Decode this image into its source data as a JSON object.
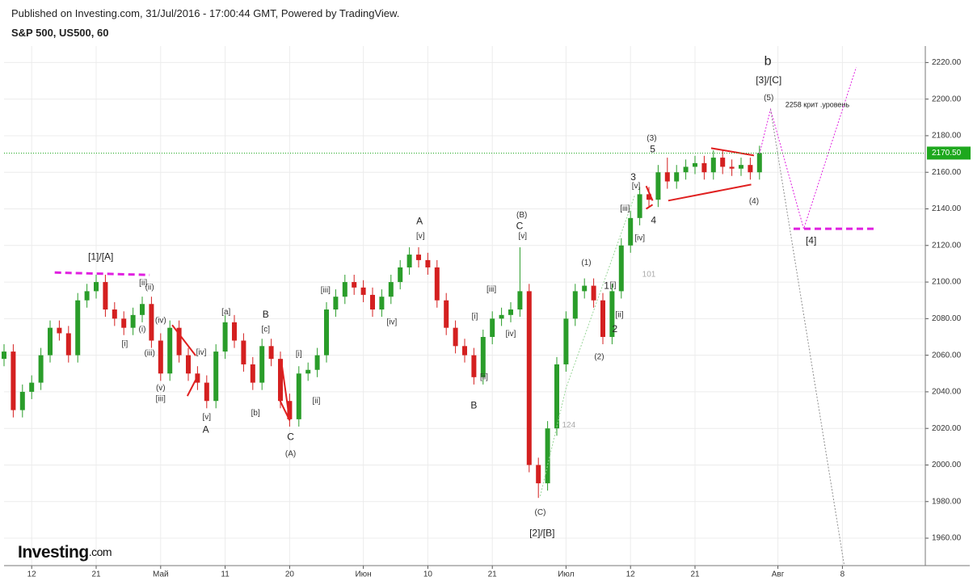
{
  "header": {
    "published": "Published on Investing.com, 31/Jul/2016 - 17:00:44 GMT, Powered by TradingView.",
    "symbol": "S&P 500, US500, 60"
  },
  "logo": {
    "name": "Investing",
    "suffix": ".com"
  },
  "chart_data": {
    "type": "candlestick",
    "grid": true,
    "up_color": "#2a9d2a",
    "down_color": "#d42020",
    "x": [
      -3,
      -2,
      -1,
      0,
      1,
      2,
      3,
      4,
      5,
      6,
      7,
      8,
      9,
      10,
      11,
      12,
      13,
      14,
      15,
      16,
      17,
      18,
      19,
      20,
      21,
      22,
      23,
      24,
      25,
      26,
      27,
      28,
      29,
      30,
      31,
      32,
      33,
      34,
      35,
      36,
      37,
      38,
      39,
      40,
      41,
      42,
      43,
      44,
      45,
      46,
      47,
      48,
      49,
      50,
      51,
      52,
      53,
      54,
      55,
      56,
      57,
      58,
      59,
      60,
      61,
      62,
      63,
      64,
      65,
      66,
      67,
      68,
      69,
      70,
      71,
      72,
      73,
      74,
      75,
      76,
      77,
      78,
      79
    ],
    "open": [
      2058,
      2062,
      2030,
      2040,
      2045,
      2060,
      2075,
      2072,
      2060,
      2090,
      2095,
      2100,
      2085,
      2080,
      2075,
      2082,
      2088,
      2068,
      2050,
      2075,
      2060,
      2050,
      2045,
      2035,
      2062,
      2078,
      2068,
      2055,
      2045,
      2065,
      2058,
      2035,
      2025,
      2050,
      2052,
      2060,
      2085,
      2092,
      2100,
      2097,
      2093,
      2085,
      2092,
      2100,
      2108,
      2115,
      2112,
      2108,
      2090,
      2075,
      2065,
      2060,
      2048,
      2070,
      2080,
      2082,
      2085,
      2095,
      2000,
      1990,
      2020,
      2055,
      2080,
      2095,
      2098,
      2090,
      2070,
      2095,
      2120,
      2135,
      2148,
      2145,
      2160,
      2155,
      2160,
      2163,
      2165,
      2160,
      2168,
      2163,
      2162,
      2164,
      2160
    ],
    "high": [
      2066,
      2066,
      2044,
      2049,
      2064,
      2079,
      2079,
      2076,
      2094,
      2099,
      2104,
      2104,
      2089,
      2084,
      2086,
      2092,
      2092,
      2072,
      2079,
      2079,
      2064,
      2054,
      2049,
      2066,
      2082,
      2082,
      2072,
      2059,
      2069,
      2069,
      2062,
      2039,
      2054,
      2056,
      2064,
      2089,
      2096,
      2104,
      2104,
      2101,
      2097,
      2096,
      2104,
      2112,
      2119,
      2119,
      2116,
      2112,
      2094,
      2079,
      2069,
      2064,
      2074,
      2084,
      2086,
      2089,
      2119,
      2099,
      2004,
      2024,
      2059,
      2084,
      2099,
      2102,
      2102,
      2094,
      2099,
      2124,
      2139,
      2152,
      2152,
      2164,
      2168,
      2164,
      2167,
      2169,
      2169,
      2172,
      2172,
      2167,
      2168,
      2168,
      2174.5
    ],
    "low": [
      2054,
      2026,
      2026,
      2036,
      2041,
      2056,
      2068,
      2056,
      2056,
      2086,
      2091,
      2081,
      2076,
      2071,
      2071,
      2078,
      2064,
      2046,
      2046,
      2056,
      2046,
      2041,
      2031,
      2031,
      2058,
      2064,
      2051,
      2041,
      2041,
      2054,
      2031,
      2021,
      2021,
      2046,
      2048,
      2056,
      2081,
      2088,
      2093,
      2089,
      2081,
      2081,
      2088,
      2096,
      2104,
      2108,
      2104,
      2086,
      2071,
      2061,
      2056,
      2044,
      2044,
      2066,
      2076,
      2078,
      2081,
      1996,
      1982,
      1986,
      2016,
      2051,
      2076,
      2091,
      2086,
      2066,
      2066,
      2091,
      2116,
      2131,
      2141,
      2141,
      2151,
      2151,
      2156,
      2159,
      2156,
      2156,
      2159,
      2158,
      2158,
      2156,
      2156
    ],
    "close": [
      2062,
      2030,
      2040,
      2045,
      2060,
      2075,
      2072,
      2060,
      2090,
      2095,
      2100,
      2085,
      2080,
      2075,
      2082,
      2088,
      2068,
      2050,
      2075,
      2060,
      2050,
      2045,
      2035,
      2062,
      2078,
      2068,
      2055,
      2045,
      2065,
      2058,
      2035,
      2025,
      2050,
      2052,
      2060,
      2085,
      2092,
      2100,
      2097,
      2093,
      2085,
      2092,
      2100,
      2108,
      2115,
      2112,
      2108,
      2090,
      2075,
      2065,
      2060,
      2048,
      2070,
      2080,
      2082,
      2085,
      2095,
      2000,
      1990,
      2020,
      2055,
      2080,
      2095,
      2098,
      2090,
      2070,
      2095,
      2120,
      2135,
      2148,
      2145,
      2160,
      2155,
      2160,
      2163,
      2165,
      2160,
      2168,
      2163,
      2162,
      2164,
      2160,
      2170.5
    ],
    "xlim": [
      -3,
      97
    ],
    "xticks": [
      {
        "value": 0,
        "label": "12"
      },
      {
        "value": 7,
        "label": "21"
      },
      {
        "value": 14,
        "label": "Май"
      },
      {
        "value": 21,
        "label": "11"
      },
      {
        "value": 28,
        "label": "20"
      },
      {
        "value": 36,
        "label": "Июн"
      },
      {
        "value": 43,
        "label": "10"
      },
      {
        "value": 50,
        "label": "21"
      },
      {
        "value": 58,
        "label": "Июл"
      },
      {
        "value": 65,
        "label": "12"
      },
      {
        "value": 72,
        "label": "21"
      },
      {
        "value": 81,
        "label": "Авг"
      },
      {
        "value": 88,
        "label": "8"
      }
    ],
    "ylim": [
      1945,
      2229
    ],
    "yticks": [
      {
        "value": 1960,
        "label": "1960.00"
      },
      {
        "value": 1980,
        "label": "1980.00"
      },
      {
        "value": 2000,
        "label": "2000.00"
      },
      {
        "value": 2020,
        "label": "2020.00"
      },
      {
        "value": 2040,
        "label": "2040.00"
      },
      {
        "value": 2060,
        "label": "2060.00"
      },
      {
        "value": 2080,
        "label": "2080.00"
      },
      {
        "value": 2100,
        "label": "2100.00"
      },
      {
        "value": 2120,
        "label": "2120.00"
      },
      {
        "value": 2140,
        "label": "2140.00"
      },
      {
        "value": 2160,
        "label": "2160.00"
      },
      {
        "value": 2180,
        "label": "2180.00"
      },
      {
        "value": 2200,
        "label": "2200.00"
      },
      {
        "value": 2220,
        "label": "2220.00"
      }
    ],
    "last_price": {
      "value": 2170.5,
      "label": "2170.50",
      "color": "#1ea81e"
    },
    "annotations": [
      {
        "text": "[1]/[A]",
        "x": 7.5,
        "y": 2113.6,
        "style": "large"
      },
      {
        "text": "[ii]",
        "x": 12.1,
        "y": 2099.5
      },
      {
        "text": "(ii)",
        "x": 12.8,
        "y": 2097
      },
      {
        "text": "(iv)",
        "x": 14,
        "y": 2079
      },
      {
        "text": "[i]",
        "x": 10.1,
        "y": 2066
      },
      {
        "text": "(i)",
        "x": 12,
        "y": 2074
      },
      {
        "text": "(iii)",
        "x": 12.8,
        "y": 2061
      },
      {
        "text": "(v)",
        "x": 14,
        "y": 2042
      },
      {
        "text": "[iii]",
        "x": 14,
        "y": 2036
      },
      {
        "text": "[iv]",
        "x": 18.4,
        "y": 2061.5
      },
      {
        "text": "[v]",
        "x": 19,
        "y": 2026
      },
      {
        "text": "A",
        "x": 18.9,
        "y": 2019,
        "style": "large"
      },
      {
        "text": "[a]",
        "x": 21.1,
        "y": 2083.6
      },
      {
        "text": "B",
        "x": 25.4,
        "y": 2082,
        "style": "large"
      },
      {
        "text": "[c]",
        "x": 25.4,
        "y": 2074
      },
      {
        "text": "[b]",
        "x": 24.3,
        "y": 2028.4
      },
      {
        "text": "C",
        "x": 28.1,
        "y": 2015,
        "style": "large"
      },
      {
        "text": "(A)",
        "x": 28.1,
        "y": 2006
      },
      {
        "text": "[i]",
        "x": 29,
        "y": 2060.6
      },
      {
        "text": "[ii]",
        "x": 30.9,
        "y": 2035
      },
      {
        "text": "[iii]",
        "x": 31.9,
        "y": 2095.5
      },
      {
        "text": "[iv]",
        "x": 39.1,
        "y": 2078
      },
      {
        "text": "A",
        "x": 42.1,
        "y": 2133,
        "style": "large"
      },
      {
        "text": "[v]",
        "x": 42.2,
        "y": 2125
      },
      {
        "text": "[iii]",
        "x": 49.9,
        "y": 2096
      },
      {
        "text": "[i]",
        "x": 48.1,
        "y": 2081
      },
      {
        "text": "[iv]",
        "x": 52,
        "y": 2071.7
      },
      {
        "text": "[ii]",
        "x": 49.1,
        "y": 2048
      },
      {
        "text": "B",
        "x": 48,
        "y": 2032.4,
        "style": "large"
      },
      {
        "text": "(B)",
        "x": 53.2,
        "y": 2136.6
      },
      {
        "text": "C",
        "x": 52.96,
        "y": 2130.4,
        "style": "large"
      },
      {
        "text": "[v]",
        "x": 53.3,
        "y": 2125
      },
      {
        "text": "(C)",
        "x": 55.2,
        "y": 1974
      },
      {
        "text": "[2]/[B]",
        "x": 55.4,
        "y": 1962.6,
        "style": "large"
      },
      {
        "text": "(1)",
        "x": 60.2,
        "y": 2110.5
      },
      {
        "text": "1",
        "x": 62.4,
        "y": 2097.7,
        "style": "large"
      },
      {
        "text": "[i]",
        "x": 63.1,
        "y": 2098
      },
      {
        "text": "[ii]",
        "x": 63.8,
        "y": 2082
      },
      {
        "text": "2",
        "x": 63.3,
        "y": 2074,
        "style": "large"
      },
      {
        "text": "(2)",
        "x": 61.6,
        "y": 2059
      },
      {
        "text": "[iii]",
        "x": 64.4,
        "y": 2140
      },
      {
        "text": "[iv]",
        "x": 66,
        "y": 2124
      },
      {
        "text": "[v]",
        "x": 65.6,
        "y": 2152.5
      },
      {
        "text": "3",
        "x": 65.3,
        "y": 2157,
        "style": "large"
      },
      {
        "text": "4",
        "x": 67.5,
        "y": 2133.5,
        "style": "large"
      },
      {
        "text": "(3)",
        "x": 67.3,
        "y": 2178.5
      },
      {
        "text": "5",
        "x": 67.4,
        "y": 2172.3,
        "style": "large"
      },
      {
        "text": "(4)",
        "x": 78.4,
        "y": 2144
      },
      {
        "text": "b",
        "x": 79.9,
        "y": 2220.4,
        "style": "huge"
      },
      {
        "text": "[3]/[C]",
        "x": 80,
        "y": 2210,
        "style": "large"
      },
      {
        "text": "(5)",
        "x": 80,
        "y": 2200.6
      },
      {
        "text": "2258 крит .уровень",
        "x": 81.8,
        "y": 2196.6,
        "style": "note"
      },
      {
        "text": "[4]",
        "x": 84.6,
        "y": 2122.4,
        "style": "large"
      },
      {
        "text": "124",
        "x": 58.3,
        "y": 2021.8,
        "style": "faint"
      },
      {
        "text": "101",
        "x": 67,
        "y": 2104,
        "style": "faint"
      }
    ],
    "drawings": [
      {
        "color": "#e020e0",
        "style": "thick-dashed",
        "x": [
          2.5,
          12.8
        ],
        "y": [
          2105.2,
          2103.9
        ]
      },
      {
        "color": "#e020e0",
        "style": "thick-dashed",
        "x": [
          82.7,
          91.5
        ],
        "y": [
          2129.1,
          2129.1
        ]
      },
      {
        "color": "#e020e0",
        "style": "dotted",
        "x": [
          79,
          80.2,
          83.8,
          89.5
        ],
        "y": [
          2170.1,
          2194.4,
          2129.1,
          2217.4
        ]
      },
      {
        "color": "#909090",
        "style": "dotted",
        "x": [
          80.2,
          88.2
        ],
        "y": [
          2194.4,
          1945
        ]
      },
      {
        "color": "#9ad69a",
        "style": "dotted",
        "x": [
          55.2,
          58,
          65.5
        ],
        "y": [
          1983,
          2042,
          2148
        ]
      },
      {
        "color": "#e02020",
        "style": "solid",
        "x": [
          15.25,
          17.8
        ],
        "y": [
          2076.5,
          2059.8
        ]
      },
      {
        "color": "#e02020",
        "style": "solid",
        "x": [
          16.9,
          17.8
        ],
        "y": [
          2037.7,
          2046.5
        ]
      },
      {
        "color": "#e02020",
        "style": "solid",
        "x": [
          26.8,
          28
        ],
        "y": [
          2036.8,
          2024.4
        ]
      },
      {
        "color": "#e02020",
        "style": "solid",
        "x": [
          27.1,
          28
        ],
        "y": [
          2056.7,
          2024.4
        ]
      },
      {
        "color": "#e02020",
        "style": "solid",
        "x": [
          66.7,
          67.4
        ],
        "y": [
          2152.5,
          2144.5
        ]
      },
      {
        "color": "#e02020",
        "style": "solid",
        "x": [
          66.7,
          67.4
        ],
        "y": [
          2140,
          2142.3
        ]
      },
      {
        "color": "#e02020",
        "style": "solid",
        "x": [
          73.75,
          78.4
        ],
        "y": [
          2173.2,
          2169.2
        ]
      },
      {
        "color": "#e02020",
        "style": "solid",
        "x": [
          69.1,
          78.1
        ],
        "y": [
          2144.5,
          2153.3
        ]
      }
    ]
  }
}
